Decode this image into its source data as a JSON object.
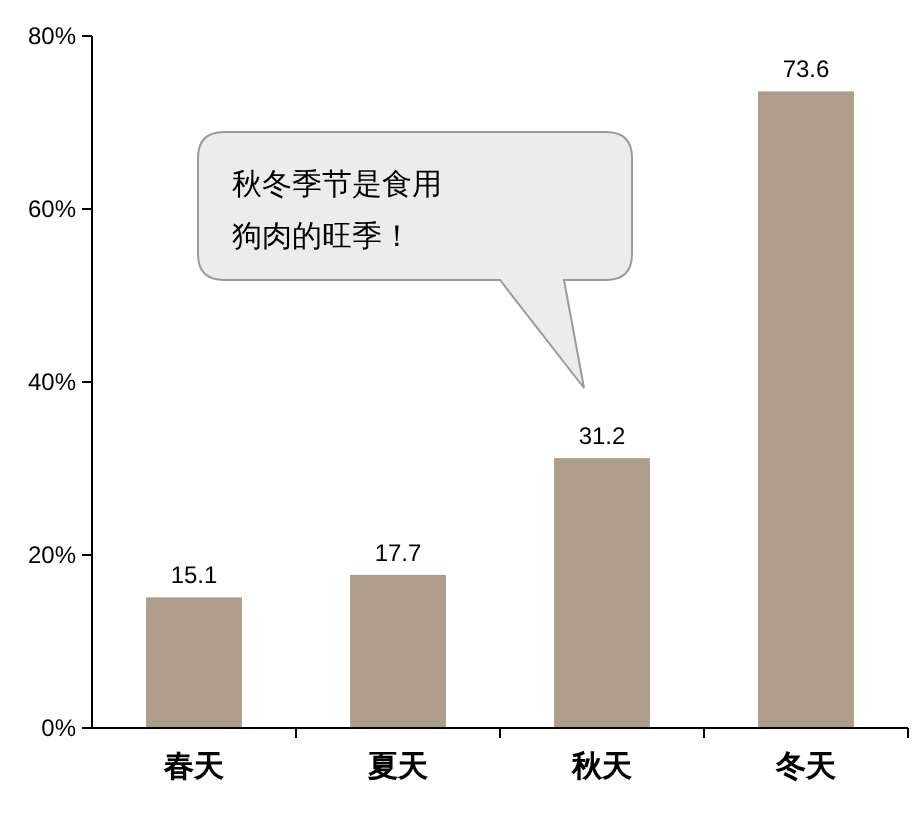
{
  "chart_data": {
    "type": "bar",
    "categories": [
      "春天",
      "夏天",
      "秋天",
      "冬天"
    ],
    "values": [
      15.1,
      17.7,
      31.2,
      73.6
    ],
    "color": "#ae9d8b",
    "ylim": [
      0,
      80
    ],
    "yticks": [
      {
        "value": 0,
        "label": "0%"
      },
      {
        "value": 20,
        "label": "20%"
      },
      {
        "value": 40,
        "label": "40%"
      },
      {
        "value": 60,
        "label": "60%"
      },
      {
        "value": 80,
        "label": "80%"
      }
    ],
    "data_labels": true,
    "grid": false,
    "annotations": [
      "秋冬季节是食用狗肉的旺季！"
    ]
  }
}
